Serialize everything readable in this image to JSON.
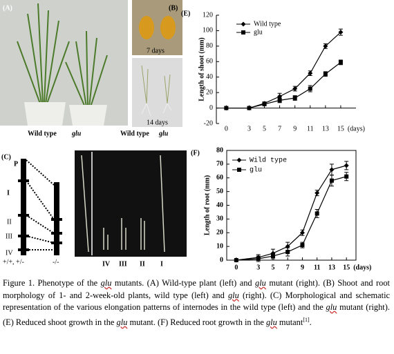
{
  "panels": {
    "a": {
      "label": "(A)",
      "captions": [
        "Wild type",
        "glu"
      ]
    },
    "b": {
      "label": "(B)",
      "top": "7 days",
      "bottom": "14 days",
      "captions": [
        "Wild type",
        "glu"
      ]
    },
    "c": {
      "label": "(C)",
      "schematic_labels": [
        "P",
        "I",
        "II",
        "III",
        "IV"
      ],
      "genotypes": [
        "+/+, +/-",
        "-/-"
      ],
      "internodes": [
        "IV",
        "III",
        "II",
        "I"
      ]
    }
  },
  "chart_data": [
    {
      "type": "line",
      "panel_label": "(E)",
      "ylabel": "Length of shoot (mm)",
      "xlabel": "(days)",
      "x": [
        0,
        3,
        5,
        7,
        9,
        11,
        13,
        15
      ],
      "xlim": [
        -1.3,
        17
      ],
      "xticks": [
        0,
        3,
        5,
        7,
        9,
        11,
        13,
        15
      ],
      "ylim": [
        -20,
        120
      ],
      "yticks": [
        -20,
        0,
        20,
        40,
        60,
        80,
        100,
        120
      ],
      "legend": "upper left",
      "series": [
        {
          "name": "Wild type",
          "color": "#000000",
          "marker": "diamond",
          "values": [
            0,
            0,
            6,
            15,
            25,
            45,
            80,
            98
          ],
          "errors": [
            0,
            0,
            2,
            4,
            3,
            3,
            3,
            4
          ]
        },
        {
          "name": "glu",
          "color": "#000000",
          "marker": "square",
          "values": [
            0,
            0,
            5,
            10,
            13,
            25,
            44,
            59
          ],
          "errors": [
            0,
            0,
            2,
            3,
            3,
            4,
            3,
            3
          ]
        }
      ]
    },
    {
      "type": "line",
      "panel_label": "(F)",
      "ylabel": "Length of root (mm)",
      "xlabel": "(days)",
      "x": [
        0,
        3,
        5,
        7,
        9,
        11,
        13,
        15
      ],
      "xlim": [
        -1.3,
        16.3
      ],
      "xticks": [
        0,
        3,
        5,
        7,
        9,
        11,
        13,
        15
      ],
      "ylim": [
        0,
        80
      ],
      "yticks": [
        0,
        10,
        20,
        30,
        40,
        50,
        60,
        70,
        80
      ],
      "legend": "upper left",
      "series": [
        {
          "name": "Wild type",
          "color": "#000000",
          "marker": "diamond",
          "values": [
            0,
            2,
            5,
            10,
            20,
            49,
            66,
            69
          ],
          "errors": [
            0,
            2,
            3,
            3,
            2,
            2,
            4,
            3
          ]
        },
        {
          "name": "glu",
          "color": "#000000",
          "marker": "square",
          "values": [
            0,
            1,
            3,
            6,
            11,
            34,
            58,
            61
          ],
          "errors": [
            0,
            2,
            2,
            3,
            2,
            3,
            4,
            3
          ]
        }
      ]
    }
  ],
  "caption": {
    "runs": [
      {
        "text": "Figure 1. Phenotype of the "
      },
      {
        "text": "glu",
        "italic": true
      },
      {
        "text": " mutants. (A) Wild-type plant (left) and "
      },
      {
        "text": "glu",
        "italic": true
      },
      {
        "text": " mutant (right). (B) Shoot and root morphology of 1- and 2-week-old plants, wild type (left) and "
      },
      {
        "text": "glu",
        "italic": true
      },
      {
        "text": " (right). (C) Morphological and schematic representation of the various elongation patterns of internodes in the wild type (left) and the "
      },
      {
        "text": "glu",
        "italic": true
      },
      {
        "text": " mutant (right). (E) Reduced shoot growth in the "
      },
      {
        "text": "glu",
        "italic": true
      },
      {
        "text": " mutant. (F) Reduced root growth in the "
      },
      {
        "text": "glu",
        "italic": true
      },
      {
        "text": " mutant"
      },
      {
        "text": "[1]",
        "sup": true
      },
      {
        "text": "."
      }
    ]
  }
}
